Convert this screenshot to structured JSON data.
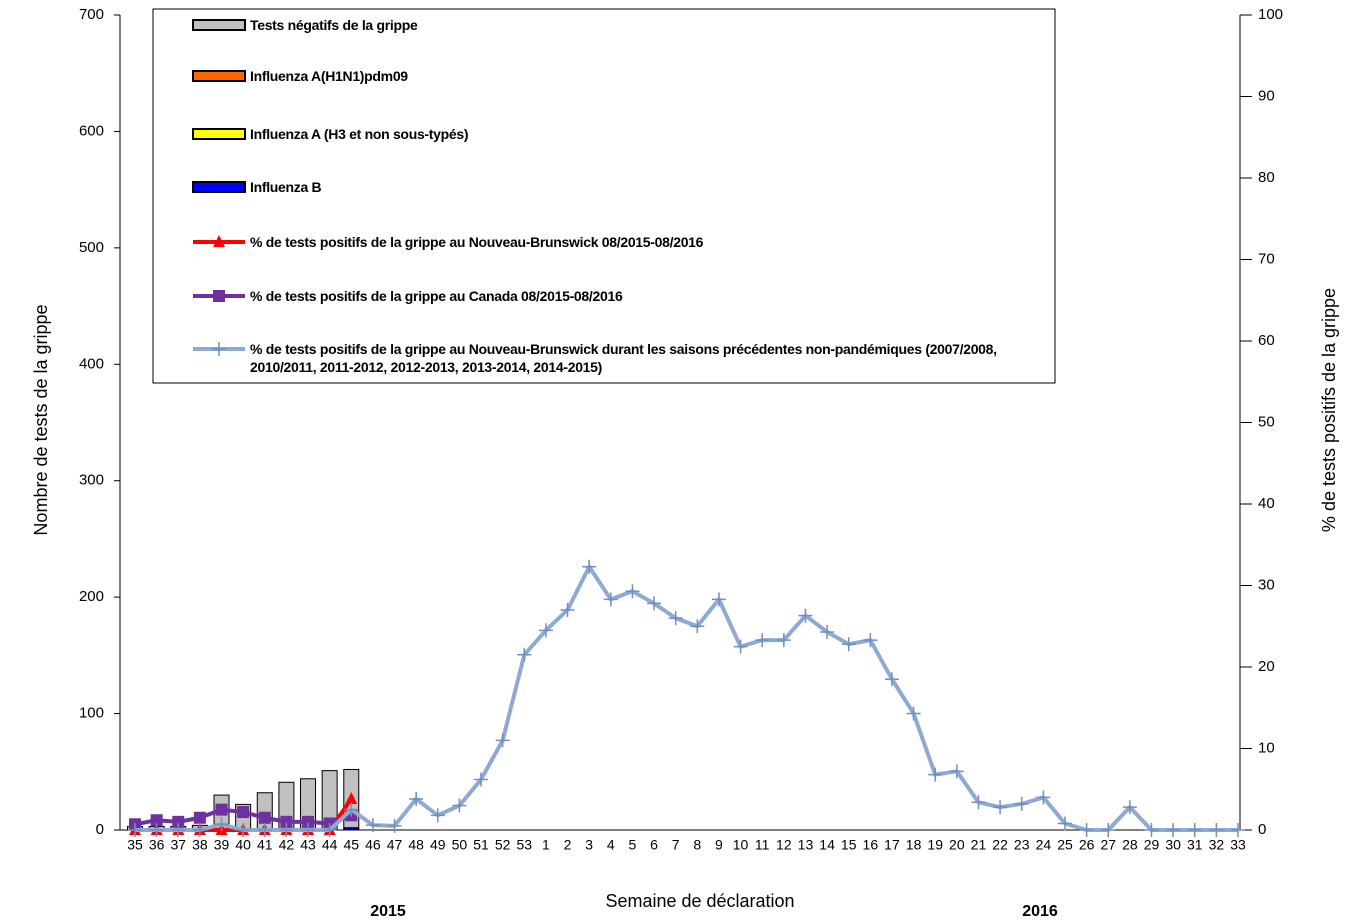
{
  "chart_data": {
    "type": "bar",
    "x_label": "Semaine de déclaration",
    "y_label": "Nombre de tests de la grippe",
    "y2_label": "% de tests positifs de la grippe",
    "annotations": [
      "2015",
      "2016"
    ],
    "categories": [
      "35",
      "36",
      "37",
      "38",
      "39",
      "40",
      "41",
      "42",
      "43",
      "44",
      "45",
      "46",
      "47",
      "48",
      "49",
      "50",
      "51",
      "52",
      "53",
      "1",
      "2",
      "3",
      "4",
      "5",
      "6",
      "7",
      "8",
      "9",
      "10",
      "11",
      "12",
      "13",
      "14",
      "15",
      "16",
      "17",
      "18",
      "19",
      "20",
      "21",
      "22",
      "23",
      "24",
      "25",
      "26",
      "27",
      "28",
      "29",
      "30",
      "31",
      "32",
      "33"
    ],
    "ylim": [
      0,
      700
    ],
    "yticks": [
      0,
      100,
      200,
      300,
      400,
      500,
      600,
      700
    ],
    "y2lim": [
      0,
      100
    ],
    "y2ticks": [
      0,
      10,
      20,
      30,
      40,
      50,
      60,
      70,
      80,
      90,
      100
    ],
    "series": [
      {
        "name": "Tests négatifs de la grippe",
        "type": "bar",
        "color": "#c0c0c0",
        "values": [
          3,
          3,
          3,
          4,
          30,
          22,
          32,
          41,
          44,
          51,
          50,
          null,
          null,
          null,
          null,
          null,
          null,
          null,
          null,
          null,
          null,
          null,
          null,
          null,
          null,
          null,
          null,
          null,
          null,
          null,
          null,
          null,
          null,
          null,
          null,
          null,
          null,
          null,
          null,
          null,
          null,
          null,
          null,
          null,
          null,
          null,
          null,
          null,
          null,
          null,
          null,
          null
        ]
      },
      {
        "name": "Influenza A(H1N1)pdm09",
        "type": "bar",
        "color": "#ff6600",
        "values": [
          0,
          0,
          0,
          0,
          0,
          0,
          0,
          0,
          0,
          0,
          0,
          null,
          null,
          null,
          null,
          null,
          null,
          null,
          null,
          null,
          null,
          null,
          null,
          null,
          null,
          null,
          null,
          null,
          null,
          null,
          null,
          null,
          null,
          null,
          null,
          null,
          null,
          null,
          null,
          null,
          null,
          null,
          null,
          null,
          null,
          null,
          null,
          null,
          null,
          null,
          null,
          null
        ]
      },
      {
        "name": " Influenza A (H3 et non sous-typés)",
        "type": "bar",
        "color": "#ffff00",
        "values": [
          0,
          0,
          0,
          0,
          0,
          0,
          0,
          0,
          0,
          0,
          0,
          null,
          null,
          null,
          null,
          null,
          null,
          null,
          null,
          null,
          null,
          null,
          null,
          null,
          null,
          null,
          null,
          null,
          null,
          null,
          null,
          null,
          null,
          null,
          null,
          null,
          null,
          null,
          null,
          null,
          null,
          null,
          null,
          null,
          null,
          null,
          null,
          null,
          null,
          null,
          null,
          null
        ]
      },
      {
        "name": "Influenza B",
        "type": "bar",
        "color": "#0000ff",
        "values": [
          0,
          0,
          0,
          0,
          0,
          0,
          0,
          0,
          0,
          0,
          2,
          null,
          null,
          null,
          null,
          null,
          null,
          null,
          null,
          null,
          null,
          null,
          null,
          null,
          null,
          null,
          null,
          null,
          null,
          null,
          null,
          null,
          null,
          null,
          null,
          null,
          null,
          null,
          null,
          null,
          null,
          null,
          null,
          null,
          null,
          null,
          null,
          null,
          null,
          null,
          null,
          null
        ]
      },
      {
        "name": "% de tests positifs de la grippe  au Nouveau-Brunswick 08/2015-08/2016",
        "type": "line",
        "axis": "y2",
        "color": "#ff0000",
        "marker": "triangle",
        "values": [
          0,
          0,
          0,
          0,
          0,
          0,
          0,
          0,
          0,
          0,
          3.8,
          null,
          null,
          null,
          null,
          null,
          null,
          null,
          null,
          null,
          null,
          null,
          null,
          null,
          null,
          null,
          null,
          null,
          null,
          null,
          null,
          null,
          null,
          null,
          null,
          null,
          null,
          null,
          null,
          null,
          null,
          null,
          null,
          null,
          null,
          null,
          null,
          null,
          null,
          null,
          null,
          null
        ]
      },
      {
        "name": "% de tests positifs de la grippe  au Canada 08/2015-08/2016",
        "type": "line",
        "axis": "y2",
        "color": "#7030a0",
        "marker": "square",
        "values": [
          0.7,
          1.2,
          1.0,
          1.5,
          2.5,
          2.2,
          1.5,
          1.0,
          1.0,
          0.8,
          1.8,
          null,
          null,
          null,
          null,
          null,
          null,
          null,
          null,
          null,
          null,
          null,
          null,
          null,
          null,
          null,
          null,
          null,
          null,
          null,
          null,
          null,
          null,
          null,
          null,
          null,
          null,
          null,
          null,
          null,
          null,
          null,
          null,
          null,
          null,
          null,
          null,
          null,
          null,
          null,
          null,
          null
        ]
      },
      {
        "name": "% de tests positifs de la grippe  au Nouveau-Brunswick durant les saisons précédentes non-pandémiques (2007/2008, 2010/2011, 2011-2012, 2012-2013, 2013-2014, 2014-2015)",
        "type": "line",
        "axis": "y2",
        "color": "#8eaad4",
        "marker": "plus",
        "values": [
          0,
          0,
          0,
          0,
          0.7,
          0,
          0,
          0,
          0,
          0,
          2.5,
          0.6,
          0.5,
          3.8,
          1.8,
          3,
          6.2,
          11,
          21.5,
          24.5,
          27,
          32.3,
          28.3,
          29.3,
          27.8,
          26,
          25,
          28.3,
          22.5,
          23.3,
          23.3,
          26.3,
          24.3,
          22.8,
          23.3,
          18.5,
          14.3,
          6.8,
          7.2,
          3.4,
          2.8,
          3.2,
          4,
          0.8,
          0,
          0,
          2.8,
          0,
          0,
          0,
          0,
          0
        ]
      }
    ]
  }
}
